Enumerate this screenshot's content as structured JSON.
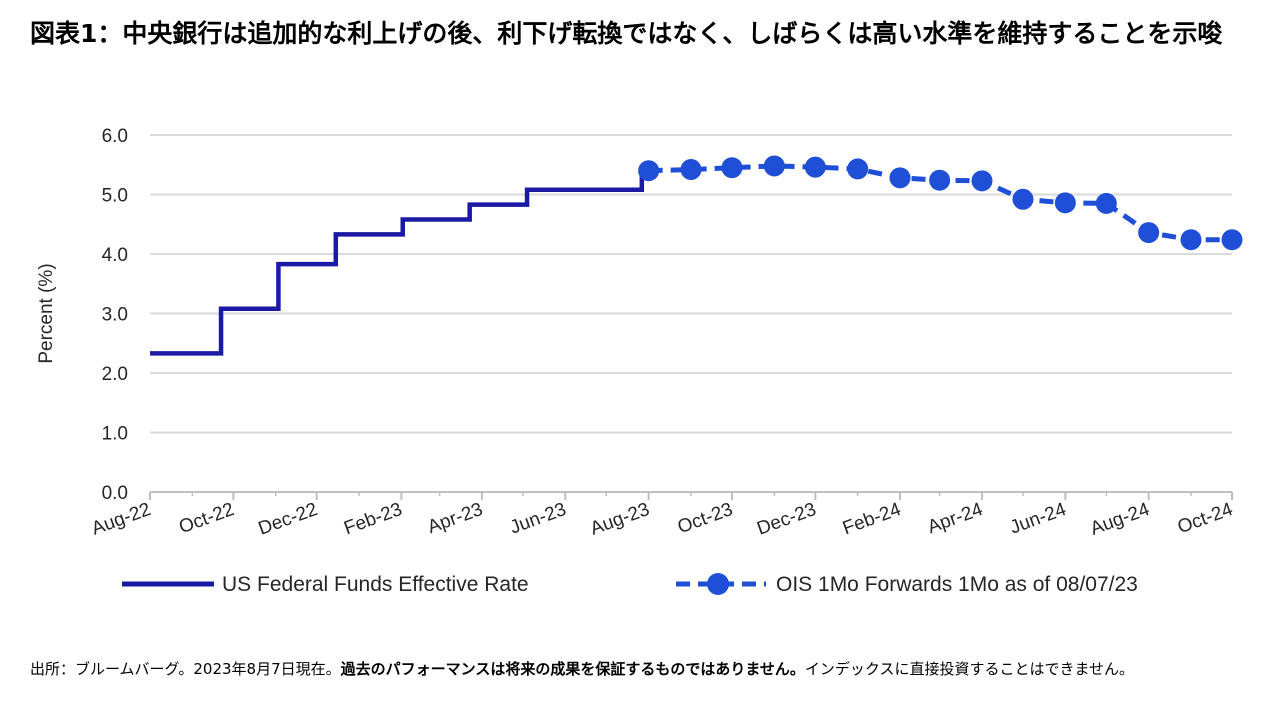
{
  "title": {
    "prefix": "図表1：",
    "text": "中央銀行は追加的な利上げの後、利下げ転換ではなく、しばらくは高い水準を維持することを示唆"
  },
  "source": {
    "prefix": "出所：ブルームバーグ。2023年8月7日現在。",
    "bold": "過去のパフォーマンスは将来の成果を保証するものではありません。",
    "suffix": "インデックスに直接投資することはできません。"
  },
  "chart_data": {
    "type": "line",
    "title": "",
    "xlabel": "",
    "ylabel": "Percent (%)",
    "ylim": [
      0,
      6
    ],
    "yticks": [
      "0.0",
      "1.0",
      "2.0",
      "3.0",
      "4.0",
      "5.0",
      "6.0"
    ],
    "x_tick_labels": [
      "Aug-22",
      "Oct-22",
      "Dec-22",
      "Feb-23",
      "Apr-23",
      "Jun-23",
      "Aug-23",
      "Oct-23",
      "Dec-23",
      "Feb-24",
      "Apr-24",
      "Jun-24",
      "Aug-24",
      "Oct-24"
    ],
    "x_range": [
      "2022-08-01",
      "2024-10-01"
    ],
    "grid": true,
    "legend_position": "bottom",
    "colors": {
      "effective": "#1a1aa6",
      "forward": "#1f4fd6",
      "grid": "#d9d9d9",
      "axis": "#bfbfbf"
    },
    "series": [
      {
        "name": "US Federal Funds Effective Rate",
        "style": "step",
        "points": [
          [
            "2022-08-01",
            2.33
          ],
          [
            "2022-09-22",
            3.08
          ],
          [
            "2022-11-03",
            3.83
          ],
          [
            "2022-12-15",
            4.33
          ],
          [
            "2023-02-02",
            4.58
          ],
          [
            "2023-03-23",
            4.83
          ],
          [
            "2023-05-04",
            5.08
          ],
          [
            "2023-07-27",
            5.33
          ],
          [
            "2023-08-01",
            5.33
          ]
        ]
      },
      {
        "name": "OIS 1Mo Forwards 1Mo as of 08/07/23",
        "style": "dashed-markers",
        "points": [
          [
            "2023-08-01",
            5.4
          ],
          [
            "2023-09-01",
            5.42
          ],
          [
            "2023-10-01",
            5.45
          ],
          [
            "2023-11-01",
            5.48
          ],
          [
            "2023-12-01",
            5.46
          ],
          [
            "2024-01-01",
            5.43
          ],
          [
            "2024-02-01",
            5.28
          ],
          [
            "2024-03-01",
            5.24
          ],
          [
            "2024-04-01",
            5.23
          ],
          [
            "2024-05-01",
            4.92
          ],
          [
            "2024-06-01",
            4.86
          ],
          [
            "2024-07-01",
            4.85
          ],
          [
            "2024-08-01",
            4.36
          ],
          [
            "2024-09-01",
            4.24
          ],
          [
            "2024-10-01",
            4.24
          ]
        ]
      }
    ]
  }
}
